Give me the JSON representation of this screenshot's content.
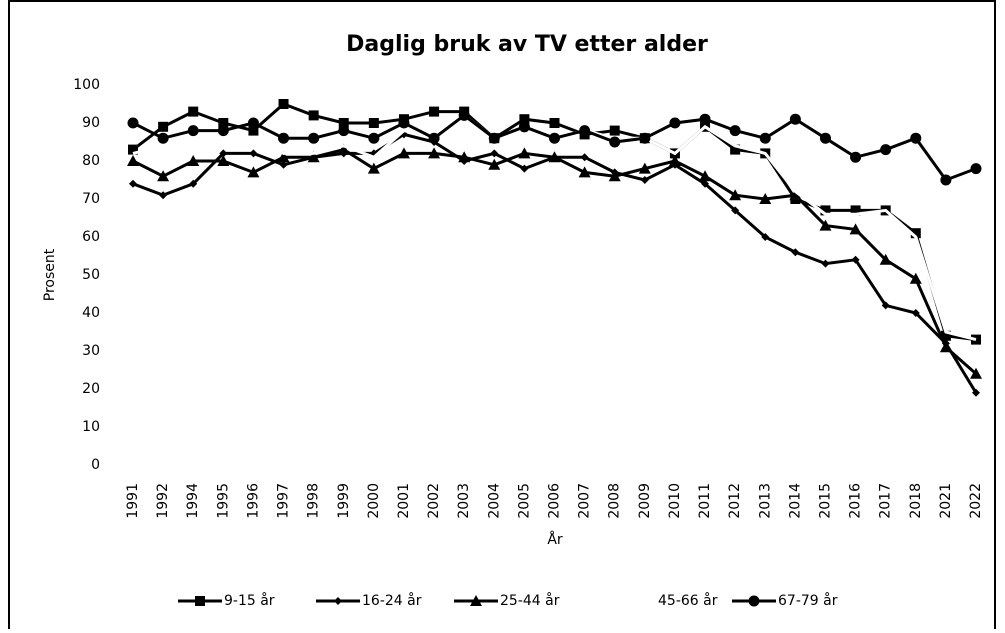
{
  "chart_data": {
    "type": "line",
    "title": "Daglig bruk av TV etter alder",
    "x_label": "År",
    "y_label": "Prosent",
    "categories": [
      "1991",
      "1992",
      "1994",
      "1995",
      "1996",
      "1997",
      "1998",
      "1999",
      "2000",
      "2001",
      "2002",
      "2003",
      "2004",
      "2005",
      "2006",
      "2007",
      "2008",
      "2009",
      "2010",
      "2011",
      "2012",
      "2013",
      "2014",
      "2015",
      "2016",
      "2017",
      "2018",
      "2021",
      "2022"
    ],
    "ylim": [
      0,
      100
    ],
    "yticks": [
      0,
      10,
      20,
      30,
      40,
      50,
      60,
      70,
      80,
      90,
      100
    ],
    "grid": false,
    "legend": "bottom",
    "series": [
      {
        "name": "9-15 år",
        "color": "#000000",
        "marker": "square",
        "values": [
          83,
          89,
          93,
          90,
          88,
          95,
          92,
          90,
          90,
          91,
          93,
          93,
          86,
          91,
          90,
          87,
          88,
          86,
          82,
          89,
          83,
          82,
          70,
          67,
          67,
          67,
          61,
          34,
          33
        ]
      },
      {
        "name": "16-24 år",
        "color": "#000000",
        "marker": "diamond",
        "values": [
          74,
          71,
          74,
          82,
          82,
          79,
          81,
          82,
          82,
          87,
          85,
          80,
          82,
          78,
          81,
          81,
          77,
          75,
          79,
          74,
          67,
          60,
          56,
          53,
          54,
          42,
          40,
          32,
          19
        ]
      },
      {
        "name": "25-44 år",
        "color": "#000000",
        "marker": "triangle",
        "values": [
          80,
          76,
          80,
          80,
          77,
          81,
          81,
          83,
          78,
          82,
          82,
          81,
          79,
          82,
          81,
          77,
          76,
          78,
          80,
          76,
          71,
          70,
          71,
          63,
          62,
          54,
          49,
          31,
          24
        ]
      },
      {
        "name": "45-66 år",
        "color": "#ffffff",
        "marker": "none",
        "values": [
          82,
          84,
          86,
          86,
          86,
          82,
          82,
          84,
          81,
          88,
          86,
          92,
          86,
          88,
          86,
          88,
          86,
          86,
          82,
          89,
          84,
          82,
          72,
          66,
          66,
          67,
          60,
          35,
          33
        ]
      },
      {
        "name": "67-79 år",
        "color": "#000000",
        "marker": "circle",
        "values": [
          90,
          86,
          88,
          88,
          90,
          86,
          86,
          88,
          86,
          90,
          86,
          92,
          86,
          89,
          86,
          88,
          85,
          86,
          90,
          91,
          88,
          86,
          91,
          86,
          81,
          83,
          86,
          75,
          78
        ]
      }
    ]
  }
}
